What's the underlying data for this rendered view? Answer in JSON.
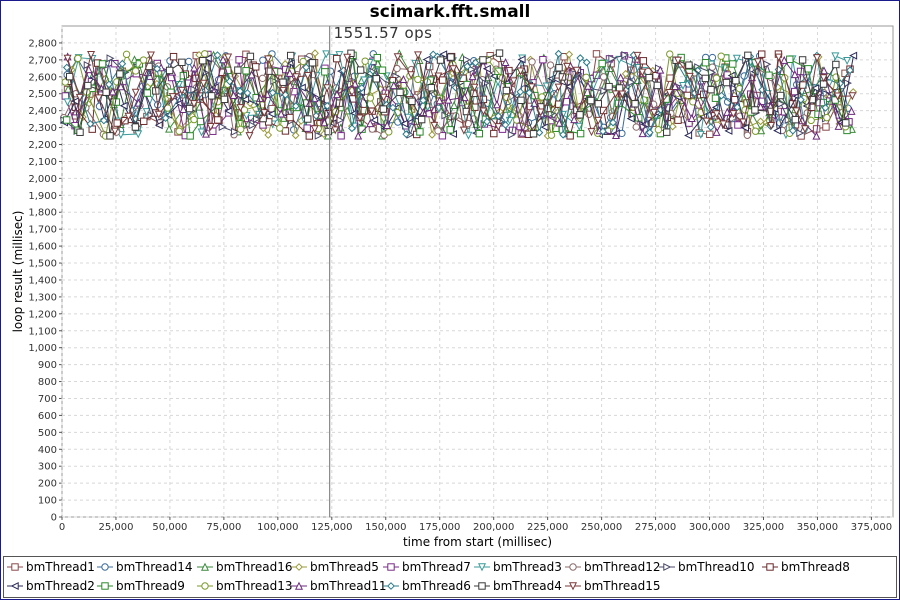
{
  "chart_data": {
    "type": "line",
    "title": "scimark.fft.small",
    "xlabel": "time from start (millisec)",
    "ylabel": "loop result (millisec)",
    "xlim": [
      0,
      385000
    ],
    "ylim": [
      0,
      2900
    ],
    "xticks": [
      0,
      25000,
      50000,
      75000,
      100000,
      125000,
      150000,
      175000,
      200000,
      225000,
      250000,
      275000,
      300000,
      325000,
      350000,
      375000
    ],
    "xtick_labels": [
      "0",
      "25,000",
      "50,000",
      "75,000",
      "100,000",
      "125,000",
      "150,000",
      "175,000",
      "200,000",
      "225,000",
      "250,000",
      "275,000",
      "300,000",
      "325,000",
      "350,000",
      "375,000"
    ],
    "yticks": [
      0,
      100,
      200,
      300,
      400,
      500,
      600,
      700,
      800,
      900,
      1000,
      1100,
      1200,
      1300,
      1400,
      1500,
      1600,
      1700,
      1800,
      1900,
      2000,
      2100,
      2200,
      2300,
      2400,
      2500,
      2600,
      2700,
      2800
    ],
    "ytick_labels": [
      "0",
      "100",
      "200",
      "300",
      "400",
      "500",
      "600",
      "700",
      "800",
      "900",
      "1,000",
      "1,100",
      "1,200",
      "1,300",
      "1,400",
      "1,500",
      "1,600",
      "1,700",
      "1,800",
      "1,900",
      "2,000",
      "2,100",
      "2,200",
      "2,300",
      "2,400",
      "2,500",
      "2,600",
      "2,700",
      "2,800"
    ],
    "grid": true,
    "legend": "bottom",
    "annotation": {
      "x": 124000,
      "label": "1551.57 ops"
    },
    "series_x_range": [
      500,
      368000
    ],
    "series_y_range": [
      2250,
      2740
    ],
    "series": [
      {
        "name": "bmThread1",
        "marker": "square",
        "color": "#8a4a4a"
      },
      {
        "name": "bmThread14",
        "marker": "circle",
        "color": "#3a6a9a"
      },
      {
        "name": "bmThread16",
        "marker": "triangle-up",
        "color": "#3a8a3a"
      },
      {
        "name": "bmThread5",
        "marker": "diamond",
        "color": "#9a9a3a"
      },
      {
        "name": "bmThread7",
        "marker": "square",
        "color": "#7a2a8a"
      },
      {
        "name": "bmThread3",
        "marker": "triangle-down",
        "color": "#3a9a9a"
      },
      {
        "name": "bmThread12",
        "marker": "circle",
        "color": "#8a6a6a"
      },
      {
        "name": "bmThread10",
        "marker": "triangle-right",
        "color": "#4a4a6a"
      },
      {
        "name": "bmThread8",
        "marker": "square",
        "color": "#6a2a2a"
      },
      {
        "name": "bmThread2",
        "marker": "triangle-left",
        "color": "#2a2a5a"
      },
      {
        "name": "bmThread9",
        "marker": "square",
        "color": "#2a8a2a"
      },
      {
        "name": "bmThread13",
        "marker": "circle",
        "color": "#7a9a2a"
      },
      {
        "name": "bmThread11",
        "marker": "triangle-up",
        "color": "#6a2a7a"
      },
      {
        "name": "bmThread6",
        "marker": "diamond",
        "color": "#2a7a8a"
      },
      {
        "name": "bmThread4",
        "marker": "square",
        "color": "#3a3a3a"
      },
      {
        "name": "bmThread15",
        "marker": "triangle-down",
        "color": "#7a3a3a"
      }
    ]
  }
}
